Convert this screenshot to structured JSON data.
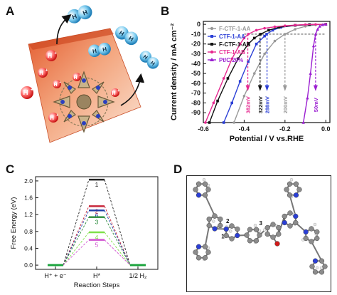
{
  "panels": {
    "a": {
      "label": "A",
      "proton_label": "H",
      "proton_superscript": "+",
      "h2_label": "H",
      "icons": [
        "electrode-surface",
        "ctf-framework",
        "proton-sphere",
        "hydrogen-molecule",
        "product-arrow"
      ]
    },
    "b": {
      "label": "B"
    },
    "c": {
      "label": "C"
    },
    "d": {
      "label": "D",
      "site_labels": [
        "1",
        "2",
        "3"
      ],
      "icons": [
        "ball-and-stick-molecule"
      ]
    }
  },
  "chart_data": [
    {
      "id": "B",
      "type": "line",
      "xlabel": "Potential / V vs.RHE",
      "ylabel": "Current density / mA cm⁻²",
      "xlim": [
        -0.6,
        0.02
      ],
      "ylim": [
        -100,
        3
      ],
      "xticks": [
        -0.6,
        -0.4,
        -0.2,
        0.0
      ],
      "xtick_labels": [
        "-0.6",
        "-0.4",
        "-0.2",
        "0.0"
      ],
      "yticks": [
        0,
        -10,
        -20,
        -30,
        -40,
        -50,
        -60,
        -70,
        -80,
        -90
      ],
      "legend_position": "top-left",
      "reference_line": {
        "y": -10,
        "style": "dashed"
      },
      "series": [
        {
          "name": "F-CTF-1-AA",
          "color": "#999999",
          "marker": "circle",
          "overpotential_label": "200mV",
          "eta": -0.2,
          "points": [
            [
              -0.45,
              -100
            ],
            [
              -0.4,
              -73
            ],
            [
              -0.35,
              -50
            ],
            [
              -0.3,
              -30
            ],
            [
              -0.25,
              -17
            ],
            [
              -0.2,
              -10
            ],
            [
              -0.15,
              -5
            ],
            [
              -0.1,
              -2
            ],
            [
              -0.05,
              -0.5
            ],
            [
              0.0,
              0
            ]
          ]
        },
        {
          "name": "CTF-1-AA",
          "color": "#2b3fd6",
          "marker": "square",
          "overpotential_label": "288mV",
          "eta": -0.288,
          "points": [
            [
              -0.5,
              -100
            ],
            [
              -0.46,
              -80
            ],
            [
              -0.42,
              -58
            ],
            [
              -0.38,
              -38
            ],
            [
              -0.34,
              -20
            ],
            [
              -0.3,
              -12
            ],
            [
              -0.29,
              -10
            ],
            [
              -0.26,
              -6
            ],
            [
              -0.22,
              -3
            ],
            [
              -0.15,
              -1
            ],
            [
              -0.08,
              -0.3
            ],
            [
              0.0,
              0
            ]
          ]
        },
        {
          "name": "F-CTF-1-AB",
          "color": "#111111",
          "marker": "square",
          "overpotential_label": "322mV",
          "eta": -0.322,
          "points": [
            [
              -0.57,
              -100
            ],
            [
              -0.53,
              -78
            ],
            [
              -0.48,
              -55
            ],
            [
              -0.43,
              -35
            ],
            [
              -0.38,
              -20
            ],
            [
              -0.35,
              -14
            ],
            [
              -0.32,
              -10
            ],
            [
              -0.28,
              -6
            ],
            [
              -0.23,
              -3
            ],
            [
              -0.15,
              -1
            ],
            [
              -0.08,
              -0.3
            ],
            [
              0.0,
              0
            ]
          ]
        },
        {
          "name": "CTF-1-AB",
          "color": "#e6278f",
          "marker": "circle",
          "overpotential_label": "382mV",
          "eta": -0.382,
          "points": [
            [
              -0.59,
              -100
            ],
            [
              -0.55,
              -80
            ],
            [
              -0.5,
              -55
            ],
            [
              -0.46,
              -35
            ],
            [
              -0.42,
              -20
            ],
            [
              -0.4,
              -14
            ],
            [
              -0.38,
              -10
            ],
            [
              -0.34,
              -6
            ],
            [
              -0.3,
              -4
            ],
            [
              -0.25,
              -2.5
            ],
            [
              -0.2,
              -1.5
            ],
            [
              -0.15,
              -0.8
            ],
            [
              -0.1,
              -0.3
            ],
            [
              -0.05,
              -0.1
            ],
            [
              0.0,
              0
            ]
          ]
        },
        {
          "name": "Pt/C 20%",
          "color": "#9b1fd1",
          "marker": "triangle",
          "overpotential_label": "50mV",
          "eta": -0.05,
          "points": [
            [
              -0.11,
              -100
            ],
            [
              -0.09,
              -75
            ],
            [
              -0.075,
              -50
            ],
            [
              -0.06,
              -22
            ],
            [
              -0.05,
              -10
            ],
            [
              -0.04,
              -5
            ],
            [
              -0.03,
              -2
            ],
            [
              -0.015,
              -0.5
            ],
            [
              0.0,
              0
            ]
          ]
        }
      ]
    },
    {
      "id": "C",
      "type": "line",
      "xlabel": "Reaction Steps",
      "ylabel": "Free Energy (eV)",
      "ylim": [
        -0.1,
        2.1
      ],
      "yticks": [
        0.0,
        0.4,
        0.8,
        1.2,
        1.6,
        2.0
      ],
      "ytick_labels": [
        "0.0",
        "0.4",
        "0.8",
        "1.2",
        "1.6",
        "2.0"
      ],
      "categories": [
        "H⁺ + e⁻",
        "H*",
        "1/2 H₂"
      ],
      "grid": false,
      "series": [
        {
          "name": "1",
          "color": "#222222",
          "values": [
            0,
            2.03,
            0
          ]
        },
        {
          "name": "2",
          "color": "#c8283c",
          "values": [
            0,
            1.4,
            0
          ]
        },
        {
          "name": "6",
          "color": "#1f3ea8",
          "values": [
            0,
            1.3,
            0
          ]
        },
        {
          "name": "3",
          "color": "#2a8a3a",
          "values": [
            0,
            1.14,
            0
          ]
        },
        {
          "name": "4",
          "color": "#7fe04a",
          "values": [
            0,
            0.78,
            0
          ]
        },
        {
          "name": "5",
          "color": "#d14fd1",
          "values": [
            0,
            0.6,
            0
          ]
        }
      ]
    }
  ]
}
